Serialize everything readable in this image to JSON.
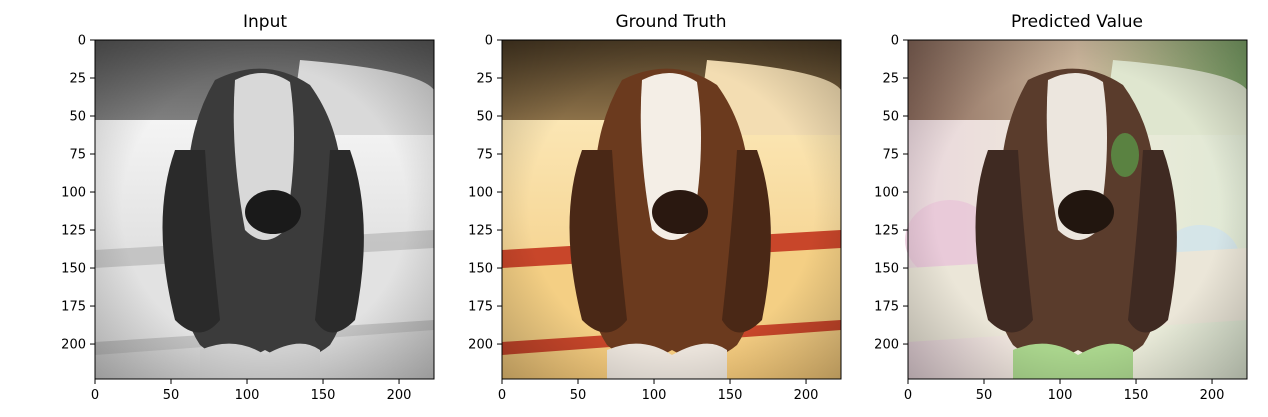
{
  "chart_data": [
    {
      "type": "image",
      "title": "Input",
      "rendering": "grayscale",
      "xlim": [
        0,
        223
      ],
      "ylim": [
        223,
        0
      ],
      "x_ticks": [
        0,
        50,
        100,
        150,
        200
      ],
      "y_ticks": [
        0,
        25,
        50,
        75,
        100,
        125,
        150,
        175,
        200
      ]
    },
    {
      "type": "image",
      "title": "Ground Truth",
      "rendering": "warm color",
      "xlim": [
        0,
        223
      ],
      "ylim": [
        223,
        0
      ],
      "x_ticks": [
        0,
        50,
        100,
        150,
        200
      ],
      "y_ticks": [
        0,
        25,
        50,
        75,
        100,
        125,
        150,
        175,
        200
      ]
    },
    {
      "type": "image",
      "title": "Predicted Value",
      "rendering": "colorized prediction",
      "xlim": [
        0,
        223
      ],
      "ylim": [
        223,
        0
      ],
      "x_ticks": [
        0,
        50,
        100,
        150,
        200
      ],
      "y_ticks": [
        0,
        25,
        50,
        75,
        100,
        125,
        150,
        175,
        200
      ]
    }
  ],
  "colors": {
    "grayscale_floor": "#e6e6e6",
    "warm_floor": "#f5dca0",
    "rug_red": "#c8462a",
    "dog_brown": "#6b3a1e",
    "ear_dark": "#3a2418",
    "pred_tint_green": "#a9d48c",
    "pred_tint_pink": "#e8c6d8"
  }
}
